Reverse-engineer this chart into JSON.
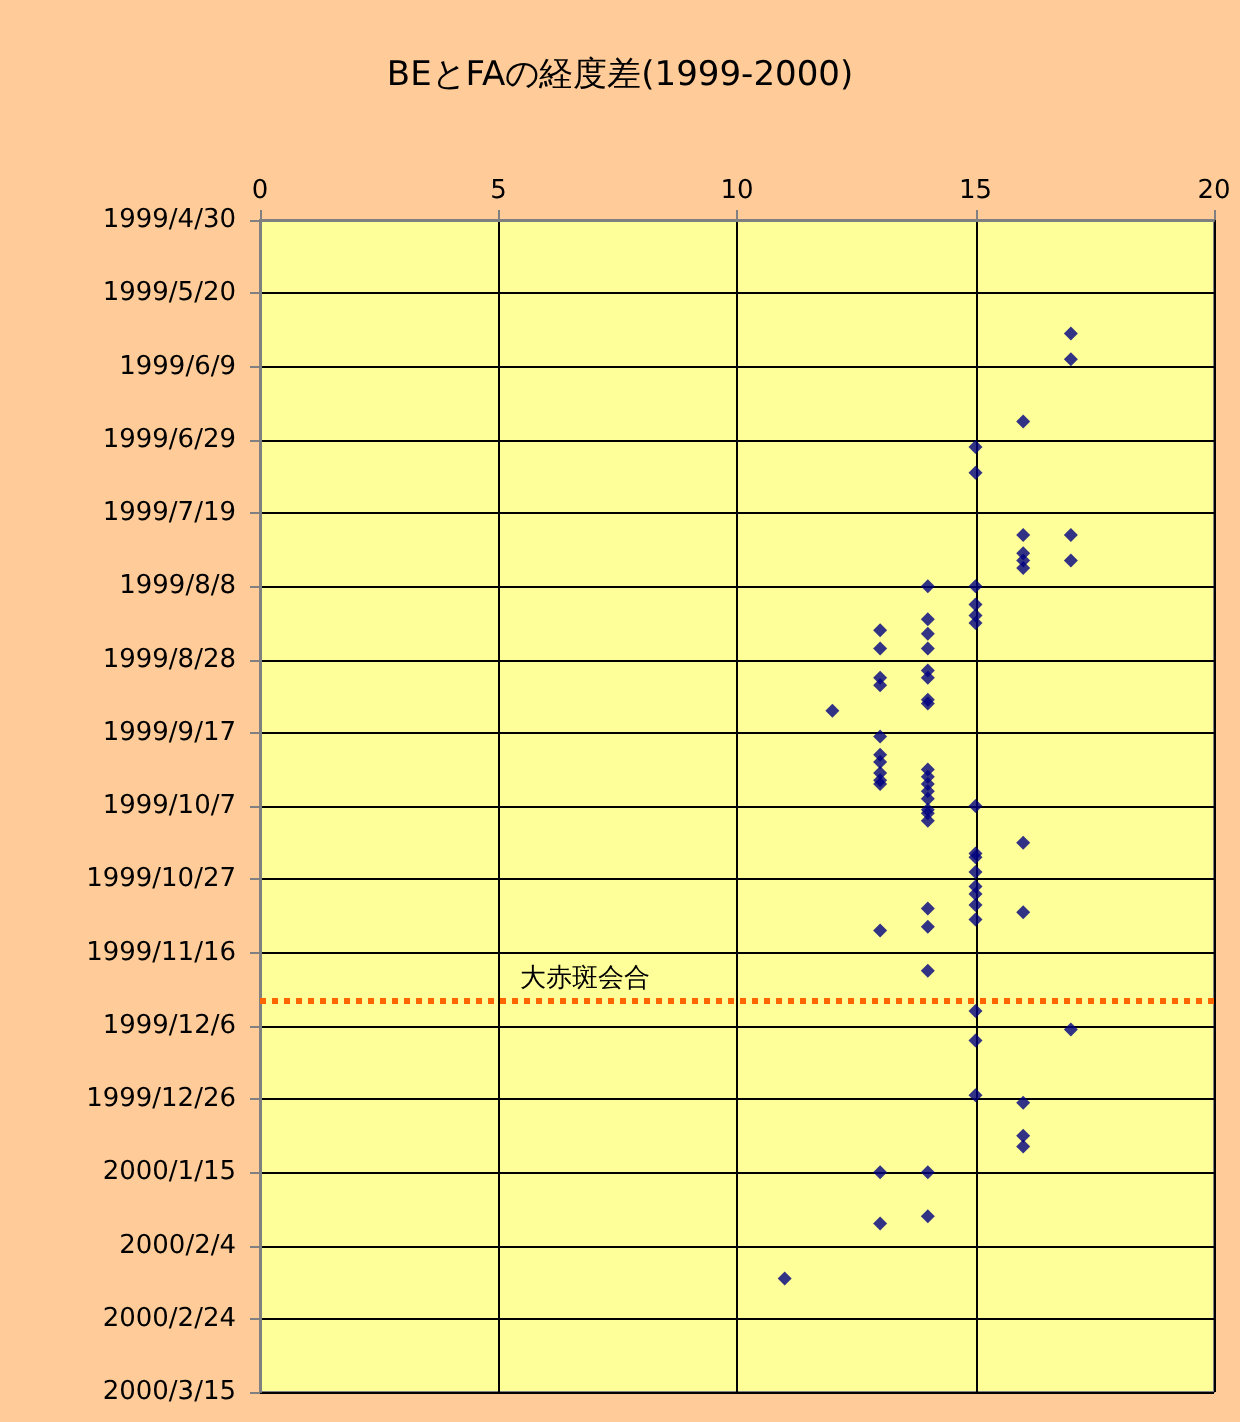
{
  "chart_data": {
    "type": "scatter",
    "title": "BEとFAの経度差(1999-2000)",
    "orientation": "horizontal",
    "x": [
      "1999-05-31",
      "1999-06-07",
      "1999-07-25",
      "1999-08-01",
      "1999-12-07",
      "1999-06-24",
      "1999-07-25",
      "1999-07-30",
      "1999-08-01",
      "1999-08-03",
      "1999-10-17",
      "1999-11-05",
      "1999-12-27",
      "2000-01-05",
      "2000-01-08",
      "1999-07-01",
      "1999-07-08",
      "1999-08-08",
      "1999-08-13",
      "1999-08-16",
      "1999-08-18",
      "1999-10-07",
      "1999-10-20",
      "1999-10-21",
      "1999-10-25",
      "1999-10-29",
      "1999-10-31",
      "1999-11-03",
      "1999-11-07",
      "1999-12-02",
      "1999-12-10",
      "1999-12-25",
      "1999-08-08",
      "1999-08-17",
      "1999-08-21",
      "1999-08-25",
      "1999-08-31",
      "1999-09-02",
      "1999-09-08",
      "1999-09-09",
      "1999-09-27",
      "1999-09-29",
      "1999-10-01",
      "1999-10-03",
      "1999-10-05",
      "1999-10-08",
      "1999-10-09",
      "1999-10-11",
      "1999-11-04",
      "1999-11-09",
      "1999-11-21",
      "2000-01-15",
      "2000-01-27",
      "1999-08-20",
      "1999-08-25",
      "1999-09-02",
      "1999-09-04",
      "1999-09-18",
      "1999-09-23",
      "1999-09-25",
      "1999-09-28",
      "1999-09-30",
      "1999-10-01",
      "1999-11-10",
      "2000-01-15",
      "2000-01-29",
      "1999-09-11",
      "2000-02-13"
    ],
    "series": [
      {
        "color": "#000080",
        "values": [
          17,
          17,
          17,
          17,
          17,
          16,
          16,
          16,
          16,
          16,
          16,
          16,
          16,
          16,
          16,
          15,
          15,
          15,
          15,
          15,
          15,
          15,
          15,
          15,
          15,
          15,
          15,
          15,
          15,
          15,
          15,
          15,
          14,
          14,
          14,
          14,
          14,
          14,
          14,
          14,
          14,
          14,
          14,
          14,
          14,
          14,
          14,
          14,
          14,
          14,
          14,
          14,
          14,
          13,
          13,
          13,
          13,
          13,
          13,
          13,
          13,
          13,
          13,
          13,
          13,
          13,
          12,
          11
        ]
      }
    ],
    "xlim": [
      0,
      20
    ],
    "xticks": [
      0,
      5,
      10,
      15,
      20
    ],
    "ylim": [
      "2000-03-15",
      "1999-04-30"
    ],
    "yticks": [
      {
        "value": "1999-04-30",
        "label": "1999/4/30"
      },
      {
        "value": "1999-05-20",
        "label": "1999/5/20"
      },
      {
        "value": "1999-06-09",
        "label": "1999/6/9"
      },
      {
        "value": "1999-06-29",
        "label": "1999/6/29"
      },
      {
        "value": "1999-07-19",
        "label": "1999/7/19"
      },
      {
        "value": "1999-08-08",
        "label": "1999/8/8"
      },
      {
        "value": "1999-08-28",
        "label": "1999/8/28"
      },
      {
        "value": "1999-09-17",
        "label": "1999/9/17"
      },
      {
        "value": "1999-10-07",
        "label": "1999/10/7"
      },
      {
        "value": "1999-10-27",
        "label": "1999/10/27"
      },
      {
        "value": "1999-11-16",
        "label": "1999/11/16"
      },
      {
        "value": "1999-12-06",
        "label": "1999/12/6"
      },
      {
        "value": "1999-12-26",
        "label": "1999/12/26"
      },
      {
        "value": "2000-01-15",
        "label": "2000/1/15"
      },
      {
        "value": "2000-02-04",
        "label": "2000/2/4"
      },
      {
        "value": "2000-02-24",
        "label": "2000/2/24"
      },
      {
        "value": "2000-03-15",
        "label": "2000/3/15"
      }
    ],
    "ref_lines": [
      {
        "axis": "y",
        "value": "1999-11-29",
        "label": "大赤斑会合",
        "color": "#ff6600",
        "line_style": "dotted"
      }
    ],
    "grid": true,
    "marker": "diamond"
  }
}
